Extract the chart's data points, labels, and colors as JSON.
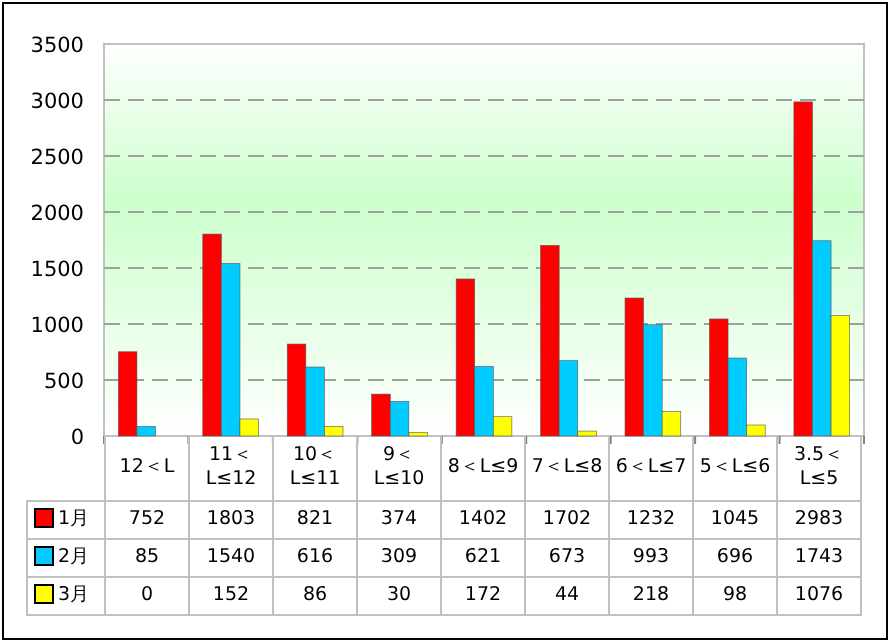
{
  "chart_data": {
    "type": "bar",
    "categories": [
      "12＜L",
      "11＜L≤12",
      "10＜L≤11",
      "9＜L≤10",
      "8＜L≤9",
      "7＜L≤8",
      "6＜L≤7",
      "5＜L≤6",
      "3.5＜L≤5"
    ],
    "series": [
      {
        "name": "1月",
        "color": "#ff0000",
        "values": [
          752,
          1803,
          821,
          374,
          1402,
          1702,
          1232,
          1045,
          2983
        ]
      },
      {
        "name": "2月",
        "color": "#00ccff",
        "values": [
          85,
          1540,
          616,
          309,
          621,
          673,
          993,
          696,
          1743
        ]
      },
      {
        "name": "3月",
        "color": "#ffff00",
        "values": [
          0,
          152,
          86,
          30,
          172,
          44,
          218,
          98,
          1076
        ]
      }
    ],
    "ylim": [
      0,
      3500
    ],
    "yticks": [
      0,
      500,
      1000,
      1500,
      2000,
      2500,
      3000,
      3500
    ],
    "grid": "y",
    "legend": "bottom",
    "data_labels": true
  }
}
